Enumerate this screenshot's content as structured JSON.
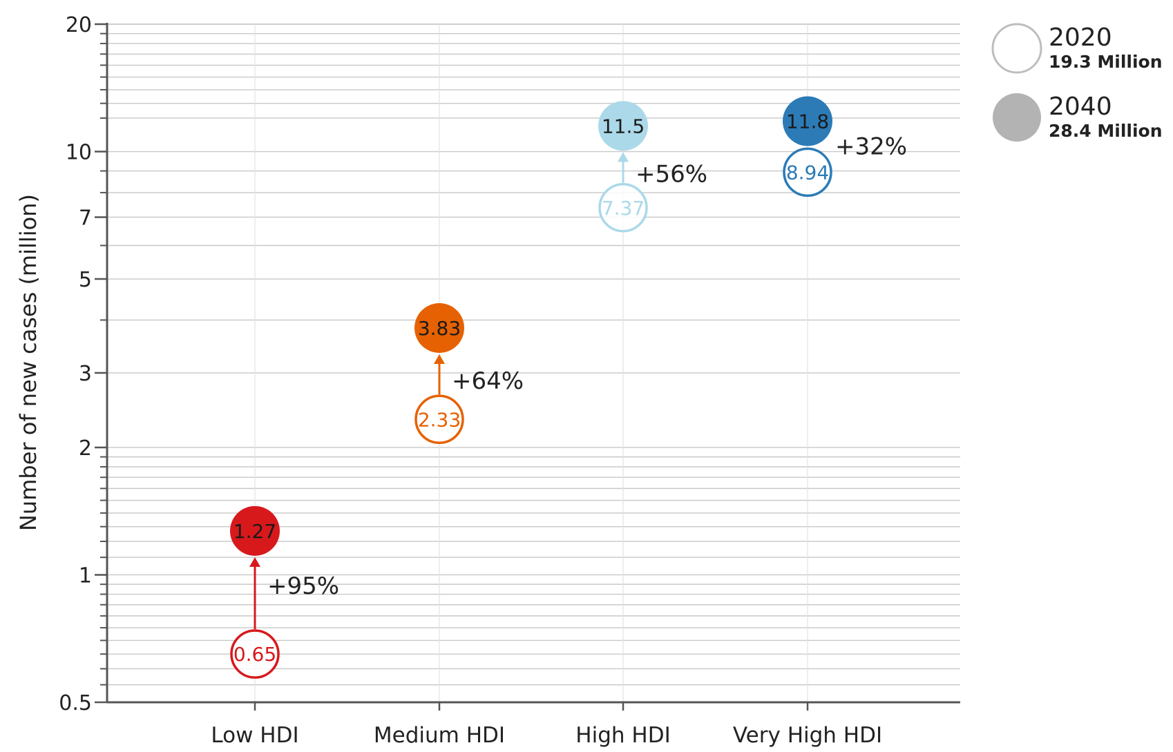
{
  "chart_data": {
    "type": "scatter",
    "ylabel": "Number of new cases (million)",
    "xlabel": "",
    "yscale": "log",
    "ylim": [
      0.5,
      20
    ],
    "y_tick_labels": [
      "0.5",
      "1",
      "2",
      "3",
      "5",
      "7",
      "10",
      "20"
    ],
    "grid": true,
    "legend_position": "top-right",
    "legend": [
      {
        "year": "2020",
        "total": "19.3 Million",
        "style": "hollow"
      },
      {
        "year": "2040",
        "total": "28.4 Million",
        "style": "filled"
      }
    ],
    "categories": [
      "Low HDI",
      "Medium HDI",
      "High HDI",
      "Very High HDI"
    ],
    "series": [
      {
        "name": "2020",
        "values": [
          0.65,
          2.33,
          7.37,
          8.94
        ],
        "labels": [
          "0.65",
          "2.33",
          "7.37",
          "8.94"
        ]
      },
      {
        "name": "2040",
        "values": [
          1.27,
          3.83,
          11.5,
          11.8
        ],
        "labels": [
          "1.27",
          "3.83",
          "11.5",
          "11.8"
        ]
      }
    ],
    "changes": [
      "+95%",
      "+64%",
      "+56%",
      "+32%"
    ],
    "colors": [
      "#d7191c",
      "#e66101",
      "#abd9e9",
      "#2c7bb6"
    ]
  }
}
